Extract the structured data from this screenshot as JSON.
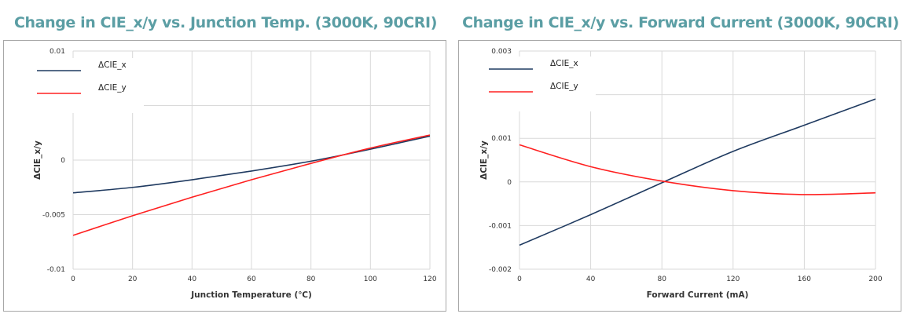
{
  "chart_data": [
    {
      "type": "line",
      "title": "Change in CIE_x/y vs. Junction Temp. (3000K, 90CRI)",
      "xlabel": "Junction Temperature (℃)",
      "ylabel": "ΔCIE_x/y",
      "xlim": [
        0,
        120
      ],
      "ylim": [
        -0.01,
        0.01
      ],
      "xticks": [
        "0",
        "20",
        "40",
        "60",
        "80",
        "100",
        "120"
      ],
      "yticks": [
        "-0.01",
        "-0.005",
        "0",
        "0.005",
        "0.01"
      ],
      "grid": true,
      "legend_position": "top-left",
      "series": [
        {
          "name": "ΔCIE_x",
          "color": "#1f3a60",
          "x": [
            0,
            20,
            40,
            60,
            80,
            100,
            120
          ],
          "values": [
            -0.003,
            -0.0025,
            -0.0018,
            -0.001,
            -0.0001,
            0.001,
            0.0022
          ]
        },
        {
          "name": "ΔCIE_y",
          "color": "#ff2020",
          "x": [
            0,
            20,
            40,
            60,
            80,
            100,
            120
          ],
          "values": [
            -0.0069,
            -0.0051,
            -0.0034,
            -0.0018,
            -0.0003,
            0.0011,
            0.0023
          ]
        }
      ]
    },
    {
      "type": "line",
      "title": "Change in CIE_x/y vs. Forward Current (3000K, 90CRI)",
      "xlabel": "Forward Current (mA)",
      "ylabel": "ΔCIE_x/y",
      "xlim": [
        0,
        200
      ],
      "ylim": [
        -0.002,
        0.003
      ],
      "xticks": [
        "0",
        "40",
        "80",
        "120",
        "160",
        "200"
      ],
      "yticks": [
        "-0.002",
        "-0.001",
        "0",
        "0.001",
        "0.002",
        "0.003"
      ],
      "grid": true,
      "legend_position": "top-left",
      "series": [
        {
          "name": "ΔCIE_x",
          "color": "#1f3a60",
          "x": [
            0,
            40,
            80,
            120,
            160,
            200
          ],
          "values": [
            -0.00145,
            -0.00075,
            -2e-05,
            0.0007,
            0.0013,
            0.0019
          ]
        },
        {
          "name": "ΔCIE_y",
          "color": "#ff2020",
          "x": [
            0,
            40,
            80,
            120,
            160,
            200
          ],
          "values": [
            0.00085,
            0.00035,
            2e-05,
            -0.0002,
            -0.00029,
            -0.00025
          ]
        }
      ]
    }
  ]
}
